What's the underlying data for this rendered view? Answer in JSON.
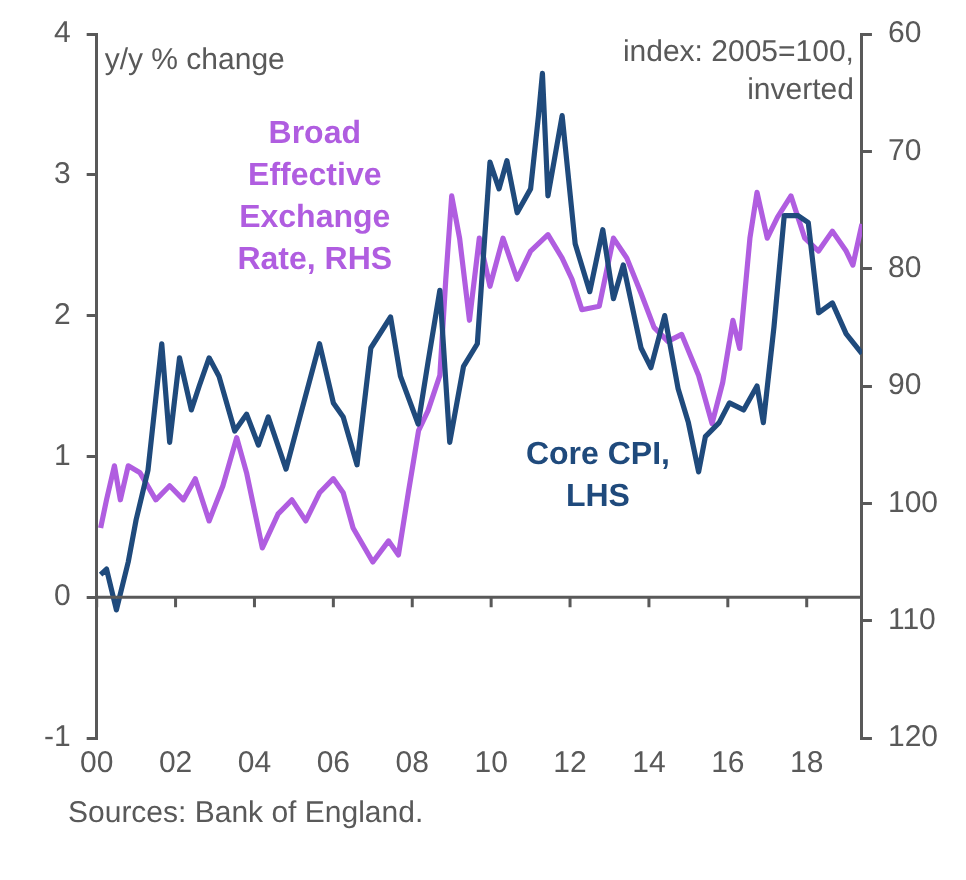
{
  "chart_data": {
    "type": "line",
    "ylabel": "y/y % change",
    "y2label": "index: 2005=100, inverted",
    "xlim": [
      2000,
      2019.4
    ],
    "xticks": [
      {
        "value": 2000,
        "label": "00"
      },
      {
        "value": 2002,
        "label": "02"
      },
      {
        "value": 2004,
        "label": "04"
      },
      {
        "value": 2006,
        "label": "06"
      },
      {
        "value": 2008,
        "label": "08"
      },
      {
        "value": 2010,
        "label": "10"
      },
      {
        "value": 2012,
        "label": "12"
      },
      {
        "value": 2014,
        "label": "14"
      },
      {
        "value": 2016,
        "label": "16"
      },
      {
        "value": 2018,
        "label": "18"
      }
    ],
    "ylim": [
      -1,
      4
    ],
    "yticks": [
      -1,
      0,
      1,
      2,
      3,
      4
    ],
    "y2lim": [
      120,
      60
    ],
    "y2ticks": [
      60,
      70,
      80,
      90,
      100,
      110,
      120
    ],
    "grid": false,
    "legend": false,
    "marker": "none",
    "line_style": "solid",
    "ref_lines": [
      {
        "axis": "y",
        "value": 0,
        "color": "#595959"
      }
    ],
    "annotations": [
      "Sources: Bank of England."
    ],
    "series": [
      {
        "name": "Core CPI, LHS",
        "color": "#1f4a7c",
        "x": [
          2000.1,
          2000.25,
          2000.5,
          2000.8,
          2001.0,
          2001.3,
          2001.65,
          2001.85,
          2002.1,
          2002.4,
          2002.6,
          2002.85,
          2003.1,
          2003.5,
          2003.8,
          2004.1,
          2004.35,
          2004.8,
          2005.2,
          2005.65,
          2006.0,
          2006.25,
          2006.6,
          2006.95,
          2007.45,
          2007.7,
          2008.15,
          2008.4,
          2008.7,
          2008.95,
          2009.3,
          2009.65,
          2009.97,
          2010.2,
          2010.4,
          2010.66,
          2011.0,
          2011.2,
          2011.3,
          2011.44,
          2011.8,
          2012.13,
          2012.5,
          2012.83,
          2013.1,
          2013.35,
          2013.8,
          2014.05,
          2014.4,
          2014.74,
          2015.0,
          2015.26,
          2015.43,
          2015.78,
          2016.04,
          2016.4,
          2016.74,
          2016.9,
          2017.17,
          2017.43,
          2017.78,
          2018.04,
          2018.3,
          2018.65,
          2019.0,
          2019.4
        ],
        "values": [
          0.16,
          0.2,
          -0.09,
          0.25,
          0.55,
          0.9,
          1.8,
          1.1,
          1.7,
          1.33,
          1.5,
          1.7,
          1.57,
          1.18,
          1.3,
          1.08,
          1.28,
          0.91,
          1.33,
          1.8,
          1.38,
          1.28,
          0.94,
          1.77,
          1.99,
          1.57,
          1.23,
          1.67,
          2.18,
          1.1,
          1.64,
          1.8,
          3.09,
          2.9,
          3.1,
          2.73,
          2.9,
          3.42,
          3.72,
          2.85,
          3.42,
          2.51,
          2.17,
          2.61,
          2.12,
          2.36,
          1.77,
          1.63,
          2.0,
          1.48,
          1.24,
          0.89,
          1.14,
          1.24,
          1.38,
          1.33,
          1.5,
          1.24,
          1.92,
          2.71,
          2.71,
          2.66,
          2.02,
          2.09,
          1.87,
          1.73
        ]
      },
      {
        "name": "Broad Effective Exchange Rate, RHS",
        "color": "#b05de0",
        "axis": "y2",
        "x": [
          2000.1,
          2000.25,
          2000.45,
          2000.6,
          2000.8,
          2001.1,
          2001.5,
          2001.85,
          2002.2,
          2002.5,
          2002.85,
          2003.2,
          2003.55,
          2003.8,
          2004.2,
          2004.6,
          2004.95,
          2005.3,
          2005.65,
          2006.0,
          2006.25,
          2006.5,
          2007.0,
          2007.4,
          2007.65,
          2007.9,
          2008.16,
          2008.4,
          2008.7,
          2008.85,
          2009.0,
          2009.2,
          2009.45,
          2009.7,
          2009.97,
          2010.3,
          2010.66,
          2011.0,
          2011.44,
          2011.8,
          2012.05,
          2012.3,
          2012.74,
          2013.1,
          2013.44,
          2013.8,
          2014.13,
          2014.48,
          2014.83,
          2015.26,
          2015.6,
          2015.87,
          2016.13,
          2016.3,
          2016.56,
          2016.74,
          2017.0,
          2017.26,
          2017.6,
          2017.95,
          2018.3,
          2018.65,
          2019.0,
          2019.17,
          2019.4
        ],
        "values": [
          102.1,
          99.7,
          96.8,
          99.7,
          96.8,
          97.4,
          99.7,
          98.5,
          99.7,
          97.9,
          101.5,
          98.5,
          94.4,
          97.4,
          103.8,
          100.9,
          99.7,
          101.5,
          99.1,
          97.9,
          99.1,
          102.1,
          105.0,
          103.2,
          104.4,
          99.1,
          93.8,
          92.1,
          89.1,
          80.9,
          73.8,
          77.4,
          84.4,
          77.4,
          81.5,
          77.4,
          80.9,
          78.5,
          77.1,
          79.1,
          80.9,
          83.5,
          83.2,
          77.4,
          79.1,
          82.1,
          85.0,
          86.2,
          85.6,
          89.1,
          93.2,
          89.7,
          84.4,
          86.8,
          77.4,
          73.5,
          77.4,
          75.6,
          73.8,
          77.4,
          78.5,
          76.8,
          78.5,
          79.7,
          76.2
        ]
      }
    ]
  }
}
